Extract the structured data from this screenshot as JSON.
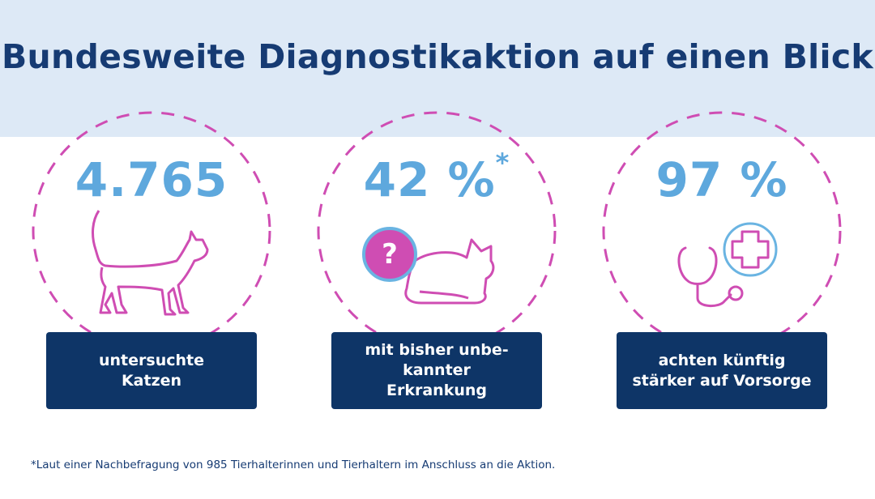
{
  "header": {
    "title": "Bundesweite Diagnostikaktion auf einen Blick"
  },
  "stats": [
    {
      "value": "4.765",
      "label": "untersuchte Katzen",
      "icon": "walking-cat-icon"
    },
    {
      "value": "42 %",
      "superscript": "*",
      "label": "mit bisher unbe- kannter Erkrankung",
      "icon": "lying-cat-icon",
      "badge": "?"
    },
    {
      "value": "97 %",
      "label": "achten künftig stärker auf Vorsorge",
      "icon": "stethoscope-icon"
    }
  ],
  "footnote": "*Laut einer Nachbefragung von 985 Tierhalterinnen und Tierhaltern im Anschluss an die Aktion.",
  "colors": {
    "header_bg": "#dde9f6",
    "title": "#163b73",
    "accent_pink": "#cf4db3",
    "accent_blue": "#5ea8dd",
    "box_bg": "#0e3567"
  }
}
